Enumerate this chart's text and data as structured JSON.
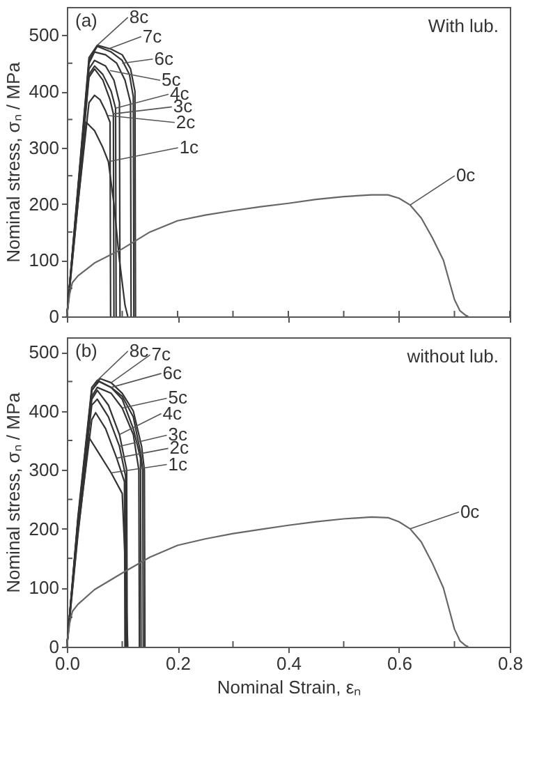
{
  "chart_data": [
    {
      "type": "line",
      "tick_labels": "y",
      "ylabel": "Nominal stress, σₙ / MPa",
      "xlim": [
        0,
        0.8
      ],
      "ylim": [
        0,
        550
      ],
      "xticks": [
        0,
        {
          "value": 0.1,
          "label": null
        },
        {
          "value": 0.2,
          "label": null
        },
        {
          "value": 0.3,
          "label": null
        },
        {
          "value": 0.4,
          "label": null
        },
        {
          "value": 0.5,
          "label": null
        },
        {
          "value": 0.6,
          "label": null
        },
        {
          "value": 0.7,
          "label": null
        },
        {
          "value": 0.8,
          "label": null
        }
      ],
      "yticks": [
        0,
        {
          "value": 50,
          "label": null
        },
        100,
        {
          "value": 150,
          "label": null
        },
        200,
        {
          "value": 250,
          "label": null
        },
        300,
        {
          "value": 350,
          "label": null
        },
        400,
        {
          "value": 450,
          "label": null
        },
        500
      ],
      "grid": false,
      "legend": false,
      "line_style": "solid",
      "marker": "none",
      "series": [
        {
          "color": "#333333",
          "x": [
            0,
            0.02,
            0.04,
            0.055,
            0.08,
            0.1,
            0.115,
            0.123,
            0.124
          ],
          "values": [
            0,
            230,
            460,
            482,
            475,
            465,
            440,
            400,
            0
          ]
        },
        {
          "color": "#333333",
          "x": [
            0,
            0.02,
            0.04,
            0.055,
            0.08,
            0.1,
            0.113,
            0.12,
            0.121
          ],
          "values": [
            0,
            225,
            455,
            480,
            470,
            455,
            430,
            390,
            0
          ]
        },
        {
          "color": "#333333",
          "x": [
            0,
            0.02,
            0.04,
            0.05,
            0.07,
            0.09,
            0.105,
            0.115,
            0.116
          ],
          "values": [
            0,
            225,
            450,
            470,
            465,
            450,
            420,
            380,
            0
          ]
        },
        {
          "color": "#333333",
          "x": [
            0,
            0.02,
            0.04,
            0.05,
            0.07,
            0.085,
            0.095,
            0.096
          ],
          "values": [
            0,
            220,
            440,
            455,
            445,
            420,
            380,
            0
          ]
        },
        {
          "color": "#333333",
          "x": [
            0,
            0.02,
            0.04,
            0.05,
            0.065,
            0.08,
            0.088,
            0.089
          ],
          "values": [
            0,
            215,
            430,
            445,
            430,
            400,
            370,
            0
          ]
        },
        {
          "color": "#333333",
          "x": [
            0,
            0.02,
            0.04,
            0.05,
            0.065,
            0.078,
            0.084,
            0.085
          ],
          "values": [
            0,
            215,
            425,
            440,
            420,
            385,
            360,
            0
          ]
        },
        {
          "color": "#333333",
          "x": [
            0,
            0.02,
            0.04,
            0.05,
            0.06,
            0.07,
            0.078,
            0.079
          ],
          "values": [
            0,
            200,
            380,
            393,
            385,
            365,
            345,
            0
          ]
        },
        {
          "color": "#333333",
          "x": [
            0,
            0.02,
            0.035,
            0.05,
            0.065,
            0.075,
            0.085,
            0.095,
            0.105,
            0.11
          ],
          "values": [
            0,
            200,
            345,
            330,
            300,
            275,
            200,
            100,
            20,
            0
          ]
        },
        {
          "color": "#666666",
          "x": [
            0,
            0.005,
            0.01,
            0.02,
            0.05,
            0.1,
            0.15,
            0.2,
            0.25,
            0.3,
            0.35,
            0.4,
            0.45,
            0.5,
            0.55,
            0.58,
            0.6,
            0.62,
            0.64,
            0.66,
            0.68,
            0.69,
            0.7,
            0.71,
            0.72,
            0.725
          ],
          "values": [
            0,
            40,
            60,
            72,
            95,
            120,
            150,
            170,
            180,
            188,
            195,
            201,
            208,
            213,
            216,
            216,
            210,
            198,
            175,
            140,
            100,
            65,
            30,
            10,
            2,
            0
          ]
        }
      ],
      "annotations": [
        "(a)",
        "With lub.",
        {
          "text": "8c",
          "x": 0.055,
          "y": 482
        },
        {
          "text": "7c",
          "x": 0.074,
          "y": 475
        },
        {
          "text": "6c",
          "x": 0.1,
          "y": 450
        },
        {
          "text": "5c",
          "x": 0.078,
          "y": 437
        },
        {
          "text": "4c",
          "x": 0.088,
          "y": 370
        },
        {
          "text": "3c",
          "x": 0.084,
          "y": 360
        },
        {
          "text": "2c",
          "x": 0.074,
          "y": 357
        },
        {
          "text": "1c",
          "x": 0.075,
          "y": 275
        },
        {
          "text": "0c",
          "x": 0.62,
          "y": 198
        }
      ]
    },
    {
      "type": "line",
      "xlabel": "Nominal Strain, εₙ",
      "ylabel": "Nominal stress, σₙ / MPa",
      "xlim": [
        0,
        0.8
      ],
      "ylim": [
        0,
        525
      ],
      "xticks": [
        {
          "value": 0,
          "label": "0.0"
        },
        {
          "value": 0.1,
          "label": null
        },
        0.2,
        {
          "value": 0.3,
          "label": null
        },
        0.4,
        {
          "value": 0.5,
          "label": null
        },
        0.6,
        {
          "value": 0.7,
          "label": null
        },
        0.8
      ],
      "yticks": [
        0,
        {
          "value": 50,
          "label": null
        },
        100,
        {
          "value": 150,
          "label": null
        },
        200,
        {
          "value": 250,
          "label": null
        },
        300,
        {
          "value": 350,
          "label": null
        },
        400,
        {
          "value": 450,
          "label": null
        },
        500
      ],
      "grid": false,
      "legend": false,
      "line_style": "solid",
      "marker": "none",
      "series": [
        {
          "color": "#333333",
          "x": [
            0,
            0.02,
            0.045,
            0.055,
            0.08,
            0.1,
            0.12,
            0.133,
            0.134
          ],
          "values": [
            0,
            220,
            440,
            452,
            440,
            420,
            370,
            320,
            0
          ]
        },
        {
          "color": "#333333",
          "x": [
            0,
            0.02,
            0.045,
            0.06,
            0.08,
            0.1,
            0.12,
            0.135,
            0.14,
            0.141
          ],
          "values": [
            0,
            215,
            435,
            455,
            448,
            430,
            400,
            340,
            300,
            0
          ]
        },
        {
          "color": "#333333",
          "x": [
            0,
            0.02,
            0.045,
            0.058,
            0.08,
            0.1,
            0.12,
            0.133,
            0.137,
            0.138
          ],
          "values": [
            0,
            215,
            435,
            450,
            440,
            425,
            390,
            330,
            300,
            0
          ]
        },
        {
          "color": "#333333",
          "x": [
            0,
            0.02,
            0.045,
            0.055,
            0.08,
            0.1,
            0.12,
            0.13,
            0.131
          ],
          "values": [
            0,
            210,
            425,
            440,
            430,
            405,
            360,
            300,
            0
          ]
        },
        {
          "color": "#333333",
          "x": [
            0,
            0.02,
            0.045,
            0.055,
            0.075,
            0.095,
            0.108,
            0.109
          ],
          "values": [
            0,
            210,
            420,
            435,
            410,
            360,
            300,
            0
          ]
        },
        {
          "color": "#333333",
          "x": [
            0,
            0.02,
            0.045,
            0.055,
            0.075,
            0.095,
            0.106,
            0.107
          ],
          "values": [
            0,
            205,
            410,
            420,
            390,
            340,
            290,
            0
          ]
        },
        {
          "color": "#333333",
          "x": [
            0,
            0.02,
            0.045,
            0.052,
            0.07,
            0.09,
            0.104,
            0.105
          ],
          "values": [
            0,
            195,
            385,
            397,
            370,
            320,
            280,
            0
          ]
        },
        {
          "color": "#333333",
          "x": [
            0,
            0.02,
            0.04,
            0.06,
            0.08,
            0.1,
            0.105,
            0.11
          ],
          "values": [
            0,
            190,
            355,
            325,
            295,
            260,
            150,
            0
          ]
        },
        {
          "color": "#666666",
          "x": [
            0,
            0.005,
            0.01,
            0.02,
            0.05,
            0.1,
            0.15,
            0.2,
            0.25,
            0.3,
            0.35,
            0.4,
            0.45,
            0.5,
            0.55,
            0.58,
            0.6,
            0.62,
            0.64,
            0.66,
            0.68,
            0.69,
            0.7,
            0.71,
            0.72,
            0.725
          ],
          "values": [
            0,
            40,
            60,
            72,
            97,
            125,
            152,
            172,
            183,
            192,
            199,
            206,
            212,
            217,
            220,
            219,
            212,
            200,
            178,
            142,
            100,
            65,
            30,
            10,
            2,
            0
          ]
        }
      ],
      "annotations": [
        "(b)",
        "without lub.",
        {
          "text": "8c",
          "x": 0.055,
          "y": 452
        },
        {
          "text": "7c",
          "x": 0.08,
          "y": 448
        },
        {
          "text": "6c",
          "x": 0.08,
          "y": 440
        },
        {
          "text": "5c",
          "x": 0.1,
          "y": 405
        },
        {
          "text": "4c",
          "x": 0.095,
          "y": 360
        },
        {
          "text": "3c",
          "x": 0.095,
          "y": 340
        },
        {
          "text": "2c",
          "x": 0.09,
          "y": 320
        },
        {
          "text": "1c",
          "x": 0.08,
          "y": 295
        },
        {
          "text": "0c",
          "x": 0.62,
          "y": 200
        }
      ]
    }
  ]
}
